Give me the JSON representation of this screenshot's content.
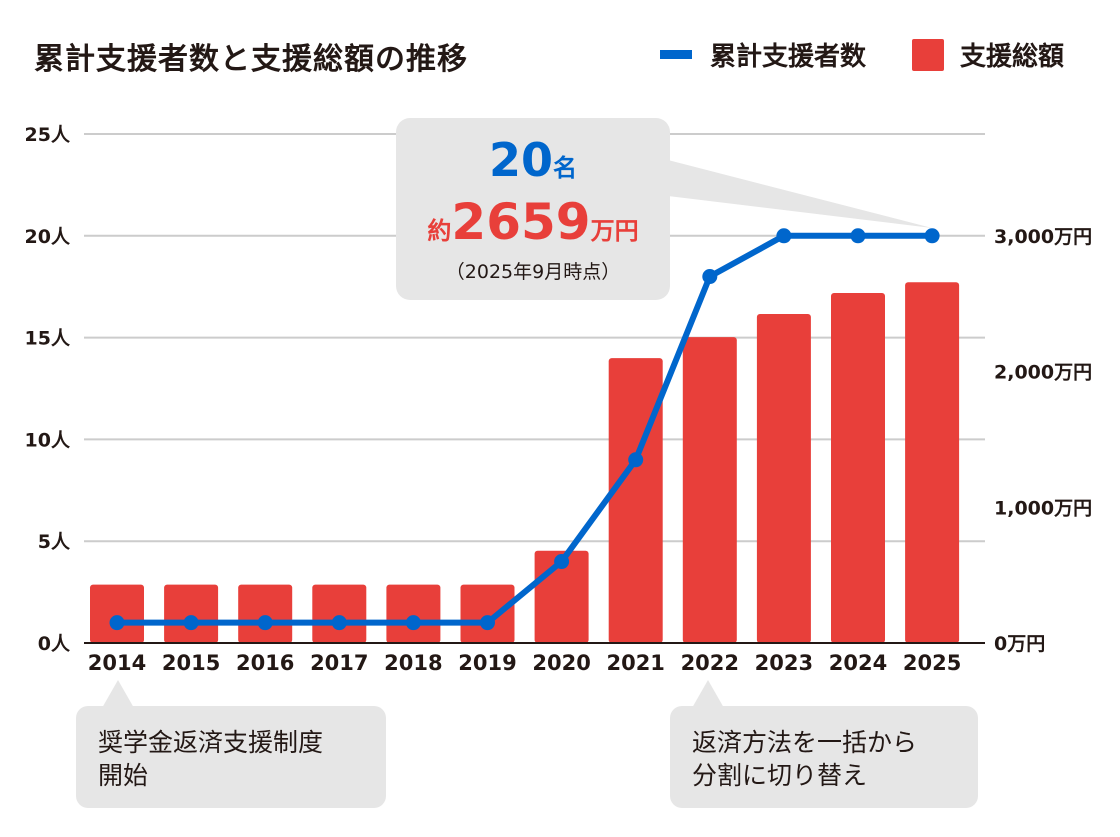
{
  "title": "累計支援者数と支援総額の推移",
  "legend": [
    {
      "label": "累計支援者数",
      "color": "#0066cc",
      "shape": "line"
    },
    {
      "label": "支援総額",
      "color": "#e83f3a",
      "shape": "square"
    }
  ],
  "left_axis": {
    "ticks": [
      "0人",
      "5人",
      "10人",
      "15人",
      "20人",
      "25人"
    ]
  },
  "right_axis": {
    "ticks": [
      "0万円",
      "1,000万円",
      "2,000万円",
      "3,000万円"
    ]
  },
  "callout": {
    "count_value": "20",
    "count_unit": "名",
    "amount_prefix": "約",
    "amount_value": "2659",
    "amount_unit": "万円",
    "as_of": "（2025年9月時点）"
  },
  "notes": {
    "left": {
      "year": "2014",
      "line1": "奨学金返済支援制度",
      "line2": "開始"
    },
    "right": {
      "year": "2022",
      "line1": "返済方法を一括から",
      "line2": "分割に切り替え"
    }
  },
  "chart_data": {
    "type": "bar+line",
    "title": "累計支援者数と支援総額の推移",
    "categories": [
      "2014",
      "2015",
      "2016",
      "2017",
      "2018",
      "2019",
      "2020",
      "2021",
      "2022",
      "2023",
      "2024",
      "2025"
    ],
    "series": [
      {
        "name": "支援総額",
        "type": "bar",
        "axis": "right",
        "unit": "万円",
        "color": "#e83f3a",
        "values": [
          430,
          430,
          430,
          430,
          430,
          430,
          680,
          2100,
          2255,
          2425,
          2580,
          2659
        ]
      },
      {
        "name": "累計支援者数",
        "type": "line",
        "axis": "left",
        "unit": "人",
        "color": "#0066cc",
        "values": [
          1,
          1,
          1,
          1,
          1,
          1,
          4,
          9,
          18,
          20,
          20,
          20
        ]
      }
    ],
    "left_axis": {
      "label": "人",
      "ylim": [
        0,
        25
      ],
      "ticks": [
        0,
        5,
        10,
        15,
        20,
        25
      ]
    },
    "right_axis": {
      "label": "万円",
      "ylim": [
        0,
        3000
      ],
      "ticks": [
        0,
        1000,
        2000,
        3000
      ]
    },
    "grid": true,
    "legend_position": "top-right",
    "annotations": [
      {
        "target": "2025",
        "text": "20名 約2659万円（2025年9月時点）"
      },
      {
        "target": "2014",
        "text": "奨学金返済支援制度開始"
      },
      {
        "target": "2022",
        "text": "返済方法を一括から分割に切り替え"
      }
    ]
  }
}
